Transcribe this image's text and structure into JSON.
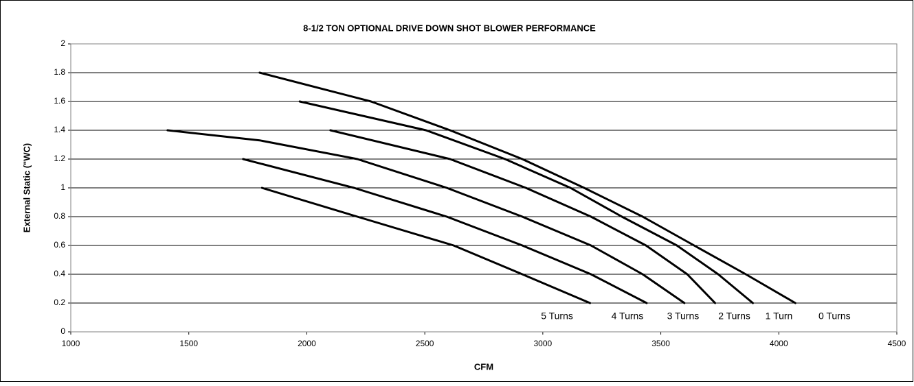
{
  "chart_data": {
    "type": "line",
    "title": "8-1/2 TON OPTIONAL DRIVE DOWN SHOT BLOWER PERFORMANCE",
    "xlabel": "CFM",
    "ylabel": "External Static (\"WC)",
    "xlim": [
      1000,
      4500
    ],
    "xticks": [
      1000,
      1500,
      2000,
      2500,
      3000,
      3500,
      4000,
      4500
    ],
    "ylim": [
      0,
      2
    ],
    "yticks": [
      0,
      0.2,
      0.4,
      0.6,
      0.8,
      1,
      1.2,
      1.4,
      1.6,
      1.8,
      2
    ],
    "grid": true,
    "series": [
      {
        "name": "0 Turns",
        "color": "#000000",
        "x": [
          1800,
          2272,
          2607,
          2913,
          3175,
          3423,
          3641,
          3860,
          4070
        ],
        "values": [
          1.8,
          1.6,
          1.4,
          1.2,
          1.0,
          0.8,
          0.6,
          0.4,
          0.2
        ]
      },
      {
        "name": "1 Turn",
        "color": "#000000",
        "x": [
          1970,
          2505,
          2840,
          3117,
          3335,
          3568,
          3743,
          3890
        ],
        "values": [
          1.6,
          1.4,
          1.2,
          1.0,
          0.8,
          0.6,
          0.4,
          0.2
        ]
      },
      {
        "name": "2 Turns",
        "color": "#000000",
        "x": [
          2100,
          2607,
          2928,
          3204,
          3437,
          3612,
          3730
        ],
        "values": [
          1.4,
          1.2,
          1.0,
          0.8,
          0.6,
          0.4,
          0.2
        ]
      },
      {
        "name": "3 Turns",
        "color": "#000000",
        "x": [
          1410,
          1800,
          2214,
          2593,
          2913,
          3204,
          3423,
          3600
        ],
        "values": [
          1.4,
          1.33,
          1.2,
          1.0,
          0.8,
          0.6,
          0.4,
          0.2
        ]
      },
      {
        "name": "4 Turns",
        "color": "#000000",
        "x": [
          1730,
          2200,
          2593,
          2913,
          3204,
          3440
        ],
        "values": [
          1.2,
          1.0,
          0.8,
          0.6,
          0.4,
          0.2
        ]
      },
      {
        "name": "5 Turns",
        "color": "#000000",
        "x": [
          1810,
          2214,
          2622,
          2913,
          3200
        ],
        "values": [
          1.0,
          0.8,
          0.6,
          0.4,
          0.2
        ]
      }
    ]
  }
}
